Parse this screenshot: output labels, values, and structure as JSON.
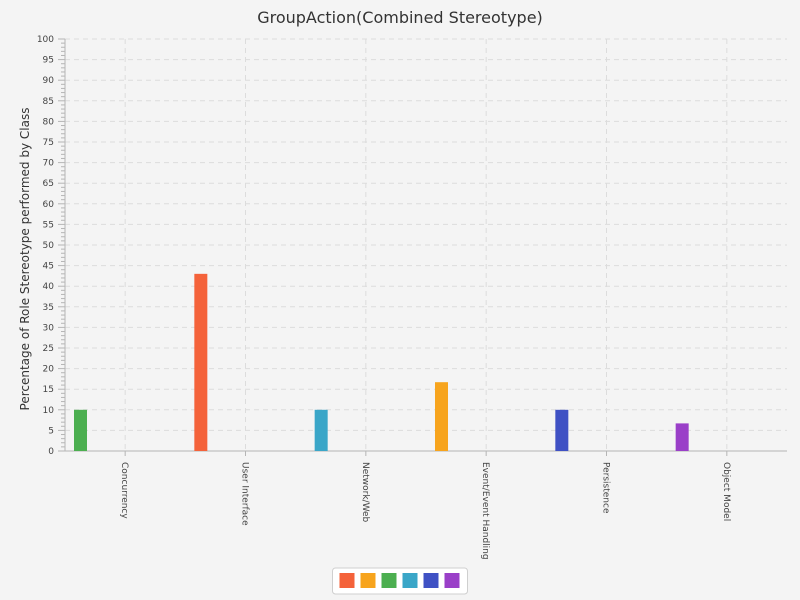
{
  "chart_data": {
    "type": "bar",
    "title": "GroupAction(Combined Stereotype)",
    "xlabel": "",
    "ylabel": "Percentage of Role Stereotype performed by Class",
    "ylim": [
      0,
      100
    ],
    "y_ticks": [
      0,
      5,
      10,
      15,
      20,
      25,
      30,
      35,
      40,
      45,
      50,
      55,
      60,
      65,
      70,
      75,
      80,
      85,
      90,
      95,
      100
    ],
    "categories": [
      "Concurrency",
      "User Interface",
      "Network/Web",
      "Event/Event Handling",
      "Persistence",
      "Object Model"
    ],
    "values": [
      10,
      43,
      10,
      16.7,
      10,
      6.7
    ],
    "bar_colors": [
      "#4caf50",
      "#f4623a",
      "#3aa6c8",
      "#f7a41d",
      "#3f51c4",
      "#9a3fc8"
    ],
    "grid": true,
    "legend": {
      "position": "bottom",
      "swatches": [
        "#f4623a",
        "#f7a41d",
        "#4caf50",
        "#3aa6c8",
        "#3f51c4",
        "#9a3fc8"
      ]
    }
  }
}
